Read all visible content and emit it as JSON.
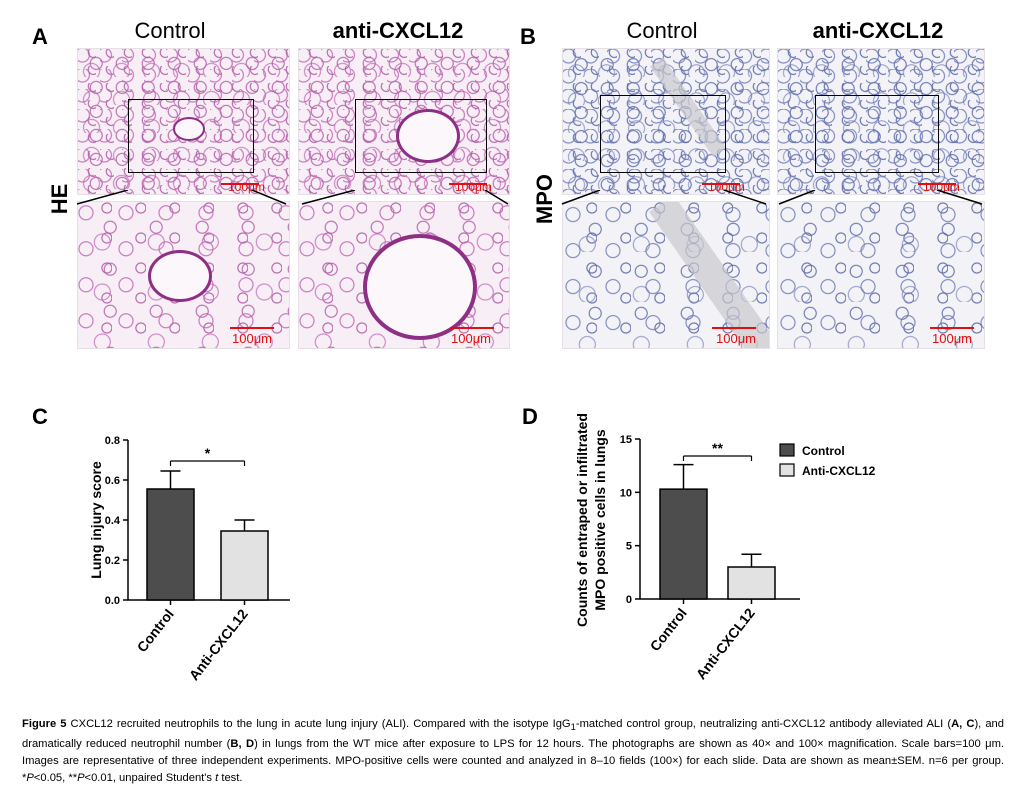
{
  "panels": {
    "A": {
      "letter": "A",
      "col_titles": [
        "Control",
        "anti-CXCL12"
      ],
      "row_label": "HE",
      "scale_text": "100μm"
    },
    "B": {
      "letter": "B",
      "col_titles": [
        "Control",
        "anti-CXCL12"
      ],
      "row_label": "MPO",
      "scale_text": "100μm"
    },
    "C": {
      "letter": "C"
    },
    "D": {
      "letter": "D"
    }
  },
  "chart_data": [
    {
      "type": "bar",
      "categories": [
        "Control",
        "Anti-CXCL12"
      ],
      "values": [
        0.555,
        0.345
      ],
      "errors": [
        0.09,
        0.055
      ],
      "ylabel": "Lung injury score",
      "ylim": [
        0,
        0.8
      ],
      "yticks": [
        "0.0",
        "0.2",
        "0.4",
        "0.6",
        "0.8"
      ],
      "yticks_values": [
        0,
        0.2,
        0.4,
        0.6,
        0.8
      ],
      "significance": "*",
      "colors": [
        "#4d4d4d",
        "#e2e2e2"
      ]
    },
    {
      "type": "bar",
      "categories": [
        "Control",
        "Anti-CXCL12"
      ],
      "values": [
        10.3,
        3.0
      ],
      "errors": [
        2.3,
        1.2
      ],
      "ylabel_lines": [
        "Counts of entraped or infiltrated",
        "MPO positive cells in lungs"
      ],
      "ylim": [
        0,
        15
      ],
      "yticks": [
        "0",
        "5",
        "10",
        "15"
      ],
      "yticks_values": [
        0,
        5,
        10,
        15
      ],
      "significance": "**",
      "legend": [
        "Control",
        "Anti-CXCL12"
      ],
      "legend_position": "top-right",
      "colors": [
        "#4d4d4d",
        "#e2e2e2"
      ]
    }
  ],
  "caption": {
    "label": "Figure 5",
    "line1": " CXCL12 recruited neutrophils to the lung in acute lung injury (ALI). Compared with the isotype IgG",
    "sub1": "1",
    "line1b": "-matched control group, neutralizing anti-CXCL12 antibody alleviated ALI (",
    "refA": "A",
    "sep1": ", ",
    "refC": "C",
    "mid1": "), and dramatically reduced neutrophil number (",
    "refB": "B",
    "sep2": ", ",
    "refD": "D",
    "rest": ") in lungs from the WT mice after exposure to LPS for 12 hours. The photographs are shown as 40× and 100× magnification. Scale bars=100 μm. Images are representative of three independent experiments. MPO-positive cells were counted and analyzed in 8–10 fields (100×) for each slide. Data are shown as mean±SEM. n=6 per group. *",
    "p1": "P",
    "mid2": "<0.05, **",
    "p2": "P",
    "mid3": "<0.01, unpaired Student's ",
    "t": "t",
    "end": " test."
  }
}
